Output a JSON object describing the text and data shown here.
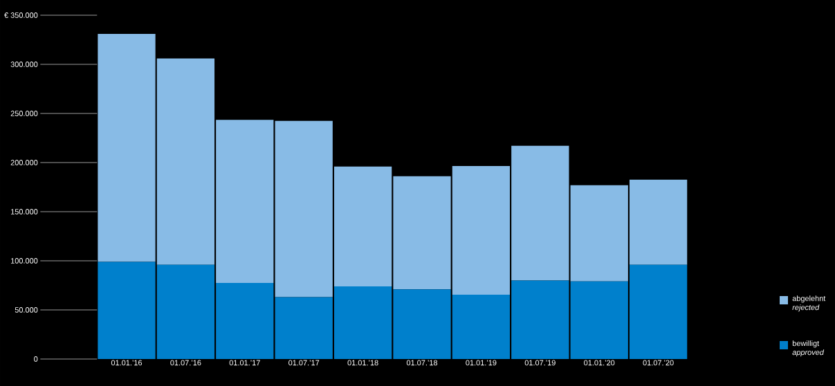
{
  "chart_data": {
    "type": "bar",
    "stacked": true,
    "categories": [
      "01.01.’16",
      "01.07.’16",
      "01.01.’17",
      "01.07.’17",
      "01.01.’18",
      "01.07.’18",
      "01.01.’19",
      "01.07.’19",
      "01.01.’20",
      "01.07.’20"
    ],
    "series": [
      {
        "name": "bewilligt *approved*",
        "color": "#0080cc",
        "values": [
          99000,
          96000,
          77500,
          63000,
          74000,
          71000,
          65500,
          80000,
          79000,
          96000
        ]
      },
      {
        "name": "abgelehnt *rejected*",
        "color": "#88bbe6",
        "values": [
          232000,
          210000,
          166000,
          179500,
          122000,
          115000,
          131000,
          137000,
          98000,
          86500
        ]
      }
    ],
    "ylim": [
      0,
      350000
    ],
    "yticks": [
      0,
      {
        "value": 50000,
        "label": "50.000"
      },
      {
        "value": 100000,
        "label": "100.000"
      },
      {
        "value": 150000,
        "label": "150.000"
      },
      {
        "value": 200000,
        "label": "200.000"
      },
      {
        "value": 250000,
        "label": "250.000"
      },
      {
        "value": 300000,
        "label": "300.000"
      },
      {
        "value": 350000,
        "label": "€ 350.000"
      }
    ],
    "legend": "bottom right"
  }
}
